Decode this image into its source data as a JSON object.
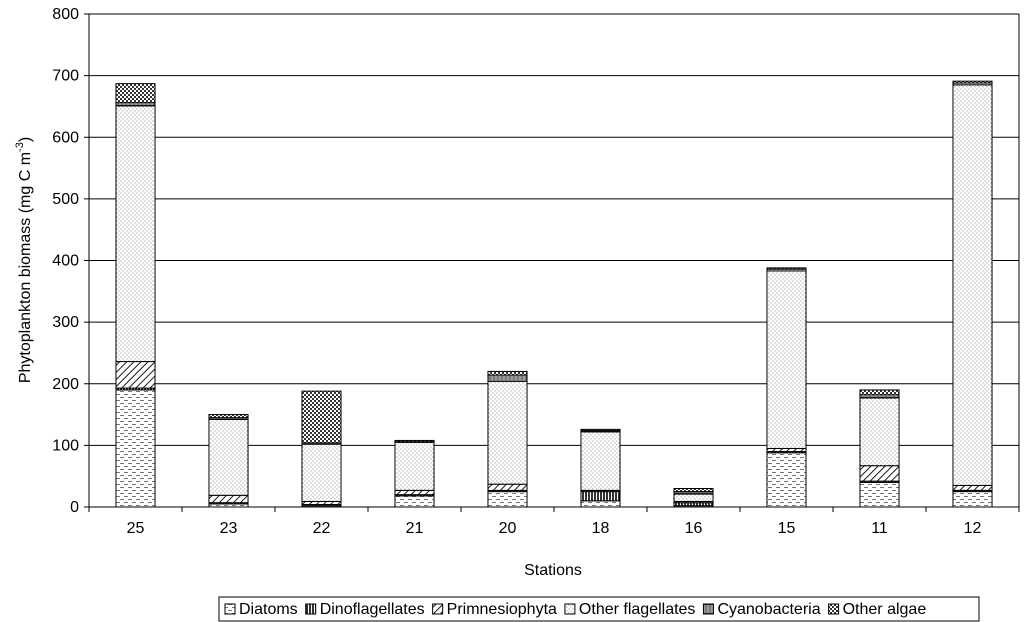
{
  "chart_data": {
    "type": "bar",
    "stacked": true,
    "xlabel": "Stations",
    "ylabel": "Phytoplankton biomass (mg C m",
    "ylabel_sup": "-3",
    "ylabel_end": ")",
    "ylim": [
      0,
      800
    ],
    "yticks": [
      "0",
      "100",
      "200",
      "300",
      "400",
      "500",
      "600",
      "700",
      "800"
    ],
    "grid": true,
    "legend_position": "bottom",
    "categories": [
      "25",
      "23",
      "22",
      "21",
      "20",
      "18",
      "16",
      "15",
      "11",
      "12"
    ],
    "series": [
      {
        "name": "Diatoms",
        "values": [
          190,
          5,
          2,
          18,
          25,
          10,
          2,
          88,
          40,
          25
        ]
      },
      {
        "name": "Dinoflagellates",
        "values": [
          3,
          2,
          2,
          2,
          2,
          15,
          5,
          2,
          2,
          2
        ]
      },
      {
        "name": "Primnesiophyta",
        "values": [
          43,
          12,
          5,
          7,
          10,
          2,
          2,
          5,
          25,
          8
        ]
      },
      {
        "name": "Other flagellates",
        "values": [
          415,
          123,
          93,
          78,
          167,
          95,
          12,
          288,
          110,
          650
        ]
      },
      {
        "name": "Cyanobacteria",
        "values": [
          5,
          3,
          2,
          1,
          10,
          2,
          4,
          3,
          5,
          3
        ]
      },
      {
        "name": "Other algae",
        "values": [
          31,
          5,
          84,
          2,
          6,
          2,
          5,
          2,
          8,
          3
        ]
      }
    ]
  }
}
